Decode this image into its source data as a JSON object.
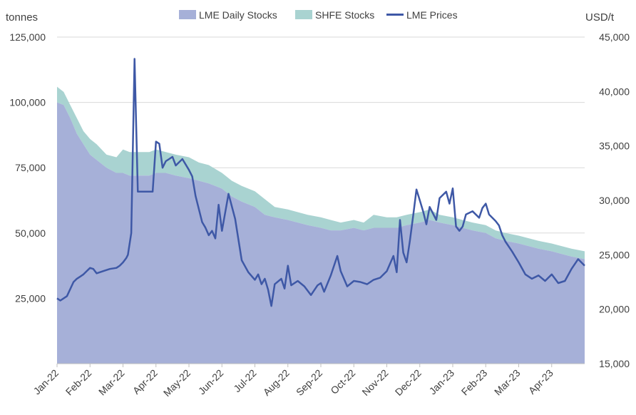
{
  "chart_data": {
    "type": "area",
    "left_axis_unit": "tonnes",
    "right_axis_unit": "USD/t",
    "categories": [
      "Jan-22",
      "Feb-22",
      "Mar-22",
      "Apr-22",
      "May-22",
      "Jun-22",
      "Jul-22",
      "Aug-22",
      "Sep-22",
      "Oct-22",
      "Nov-22",
      "Dec-22",
      "Jan-23",
      "Feb-23",
      "Mar-23",
      "Apr-23"
    ],
    "y_left": {
      "min": 0,
      "max": 125000,
      "ticks": [
        25000,
        50000,
        75000,
        100000,
        125000
      ],
      "tick_labels": [
        "25,000",
        "50,000",
        "75,000",
        "100,000",
        "125,000"
      ]
    },
    "y_right": {
      "min": 15000,
      "max": 45000,
      "ticks": [
        15000,
        20000,
        25000,
        30000,
        35000,
        40000,
        45000
      ],
      "tick_labels": [
        "15,000",
        "20,000",
        "25,000",
        "30,000",
        "35,000",
        "40,000",
        "45,000"
      ]
    },
    "legend_position": "top",
    "grid": true,
    "colors": {
      "lme_stocks": "#a6b0d8",
      "shfe_stocks": "#a9d3d1",
      "lme_prices": "#3e58a6",
      "grid": "#d9d9d9",
      "axis": "#bfbfbf"
    },
    "series": [
      {
        "name": "LME Daily Stocks",
        "kind": "stacked-area",
        "axis": "left",
        "x": [
          0,
          0.2,
          0.4,
          0.6,
          0.8,
          1.0,
          1.2,
          1.5,
          1.8,
          2.0,
          2.2,
          2.5,
          2.8,
          3.0,
          3.3,
          3.6,
          4.0,
          4.3,
          4.6,
          5.0,
          5.3,
          5.6,
          6.0,
          6.3,
          6.6,
          7.0,
          7.3,
          7.6,
          8.0,
          8.3,
          8.6,
          9.0,
          9.3,
          9.6,
          10.0,
          10.3,
          10.6,
          11.0,
          11.3,
          11.6,
          12.0,
          12.3,
          12.6,
          13.0,
          13.3,
          13.6,
          14.0,
          14.3,
          14.6,
          15.0,
          15.3,
          15.6,
          16.0
        ],
        "values": [
          100000,
          99000,
          94000,
          88000,
          84000,
          80000,
          78000,
          75000,
          73000,
          73000,
          72000,
          72000,
          72000,
          73000,
          73000,
          72000,
          71000,
          70000,
          69000,
          67000,
          64000,
          62000,
          60000,
          57000,
          56000,
          55000,
          54000,
          53000,
          52000,
          51000,
          51000,
          52000,
          51000,
          52000,
          52000,
          52000,
          53000,
          54000,
          55000,
          54000,
          53000,
          52000,
          51000,
          50000,
          48000,
          47000,
          46000,
          45000,
          44000,
          43000,
          42000,
          41000,
          40000
        ]
      },
      {
        "name": "SHFE Stocks",
        "kind": "stacked-area",
        "axis": "left",
        "x": [
          0,
          0.2,
          0.4,
          0.6,
          0.8,
          1.0,
          1.2,
          1.5,
          1.8,
          2.0,
          2.2,
          2.5,
          2.8,
          3.0,
          3.3,
          3.6,
          4.0,
          4.3,
          4.6,
          5.0,
          5.3,
          5.6,
          6.0,
          6.3,
          6.6,
          7.0,
          7.3,
          7.6,
          8.0,
          8.3,
          8.6,
          9.0,
          9.3,
          9.6,
          10.0,
          10.3,
          10.6,
          11.0,
          11.3,
          11.6,
          12.0,
          12.3,
          12.6,
          13.0,
          13.3,
          13.6,
          14.0,
          14.3,
          14.6,
          15.0,
          15.3,
          15.6,
          16.0
        ],
        "values": [
          6000,
          5000,
          5000,
          6000,
          5000,
          6000,
          6000,
          5000,
          6000,
          9000,
          9000,
          9000,
          9000,
          9000,
          8000,
          8000,
          8000,
          7000,
          7000,
          6000,
          6000,
          6000,
          6000,
          6000,
          4000,
          4000,
          4000,
          4000,
          4000,
          4000,
          3000,
          3000,
          3000,
          5000,
          4000,
          4000,
          4000,
          4000,
          4000,
          3000,
          3000,
          3000,
          3000,
          3000,
          3000,
          3000,
          3000,
          3000,
          3000,
          3000,
          3000,
          3000,
          3000
        ]
      },
      {
        "name": "LME Prices",
        "kind": "line",
        "axis": "right",
        "x": [
          0,
          0.1,
          0.3,
          0.5,
          0.6,
          0.7,
          0.8,
          0.9,
          1.0,
          1.1,
          1.2,
          1.4,
          1.6,
          1.8,
          1.9,
          2.0,
          2.1,
          2.15,
          2.25,
          2.35,
          2.45,
          2.55,
          2.7,
          2.9,
          3.0,
          3.1,
          3.2,
          3.3,
          3.4,
          3.5,
          3.6,
          3.8,
          4.0,
          4.1,
          4.2,
          4.4,
          4.5,
          4.6,
          4.7,
          4.8,
          4.9,
          5.0,
          5.2,
          5.4,
          5.6,
          5.8,
          6.0,
          6.1,
          6.2,
          6.3,
          6.4,
          6.5,
          6.6,
          6.8,
          6.9,
          7.0,
          7.1,
          7.3,
          7.5,
          7.7,
          7.9,
          8.0,
          8.1,
          8.3,
          8.5,
          8.6,
          8.8,
          9.0,
          9.2,
          9.4,
          9.6,
          9.8,
          10.0,
          10.2,
          10.3,
          10.4,
          10.5,
          10.6,
          10.7,
          10.8,
          10.9,
          11.0,
          11.1,
          11.2,
          11.3,
          11.5,
          11.6,
          11.8,
          11.9,
          12.0,
          12.1,
          12.2,
          12.3,
          12.4,
          12.6,
          12.8,
          12.9,
          13.0,
          13.1,
          13.3,
          13.4,
          13.5,
          13.6,
          13.8,
          14.0,
          14.2,
          14.4,
          14.6,
          14.8,
          15.0,
          15.2,
          15.4,
          15.6,
          15.8,
          16.0
        ],
        "values": [
          21000,
          20800,
          21200,
          22500,
          22800,
          23000,
          23200,
          23500,
          23800,
          23700,
          23300,
          23500,
          23700,
          23800,
          24000,
          24300,
          24700,
          25000,
          27000,
          43000,
          30800,
          30800,
          30800,
          30800,
          35400,
          35200,
          33000,
          33600,
          33800,
          34000,
          33200,
          33800,
          32800,
          32200,
          30400,
          28000,
          27500,
          26800,
          27200,
          26500,
          29600,
          27200,
          30600,
          28300,
          24500,
          23400,
          22700,
          23200,
          22300,
          22800,
          21800,
          20300,
          22300,
          22800,
          21900,
          24000,
          22200,
          22600,
          22100,
          21300,
          22200,
          22400,
          21600,
          23100,
          24900,
          23500,
          22100,
          22600,
          22500,
          22300,
          22700,
          22900,
          23500,
          24900,
          23400,
          28200,
          25200,
          24300,
          26300,
          28600,
          31000,
          30000,
          29000,
          27800,
          29400,
          28200,
          30200,
          30800,
          29700,
          31100,
          27600,
          27200,
          27600,
          28700,
          29000,
          28400,
          29300,
          29700,
          28700,
          28100,
          27700,
          26800,
          26200,
          25300,
          24300,
          23200,
          22800,
          23100,
          22600,
          23200,
          22400,
          22600,
          23700,
          24600,
          24000
        ]
      }
    ]
  }
}
